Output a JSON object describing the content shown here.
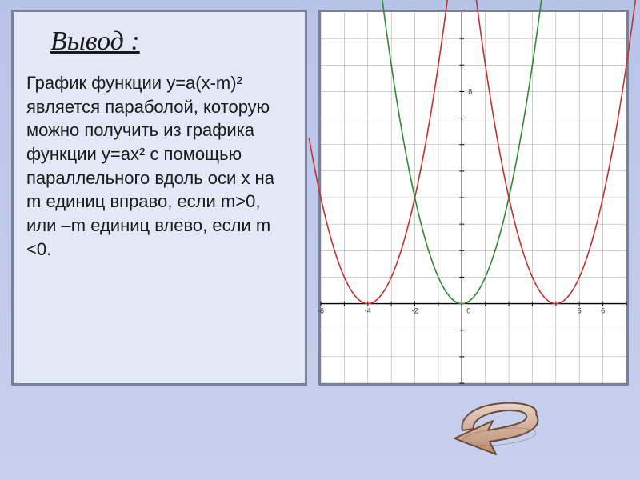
{
  "background": {
    "gradient_top": "#b8c3e8",
    "gradient_bottom": "#c8d0ee"
  },
  "textbox": {
    "border_color": "#7a7f9a",
    "bg_color": "#e3e8f7",
    "title": "Вывод :",
    "title_fontsize": 34,
    "body": "График функции y=a(x-m)²  является параболой, которую можно получить из графика функции y=ax² с помощью параллельного вдоль оси x на m единиц вправо, если m>0, или –m   единиц влево, если m <0.",
    "body_fontsize": 22,
    "text_color": "#1a1a1a"
  },
  "chart": {
    "type": "line",
    "bg_color": "#ffffff",
    "border_color": "#7a7f9a",
    "grid_color": "#7a7a7a",
    "axis_color": "#000000",
    "x_range": [
      -6,
      7
    ],
    "y_range": [
      -3,
      11
    ],
    "x_ticks": [
      -6,
      -5,
      -4,
      -3,
      -2,
      -1,
      0,
      1,
      2,
      3,
      4,
      5,
      6,
      7
    ],
    "y_ticks": [
      -3,
      -2,
      -1,
      0,
      1,
      2,
      3,
      4,
      5,
      6,
      7,
      8,
      9,
      10
    ],
    "x_tick_labels_shown": {
      "-6": "-6",
      "-4": "-4",
      "-2": "-2",
      "5": "5",
      "6": "6"
    },
    "y_tick_labels_shown": {
      "8": "8"
    },
    "origin_label": "0",
    "tick_fontsize": 9,
    "series": [
      {
        "name": "left-red",
        "type": "parabola",
        "color": "#c53030",
        "width": 1.6,
        "a": 1,
        "h": -4,
        "k": 0
      },
      {
        "name": "center-green",
        "type": "parabola",
        "color": "#2f8a2f",
        "width": 1.6,
        "a": 1,
        "h": 0,
        "k": 0
      },
      {
        "name": "right-red",
        "type": "parabola",
        "color": "#c53030",
        "width": 1.6,
        "a": 1,
        "h": 4,
        "k": 0
      }
    ]
  },
  "arrow": {
    "fill": "#c9a18a",
    "stroke": "#6b4a3a",
    "highlight": "#e8d3c4"
  }
}
